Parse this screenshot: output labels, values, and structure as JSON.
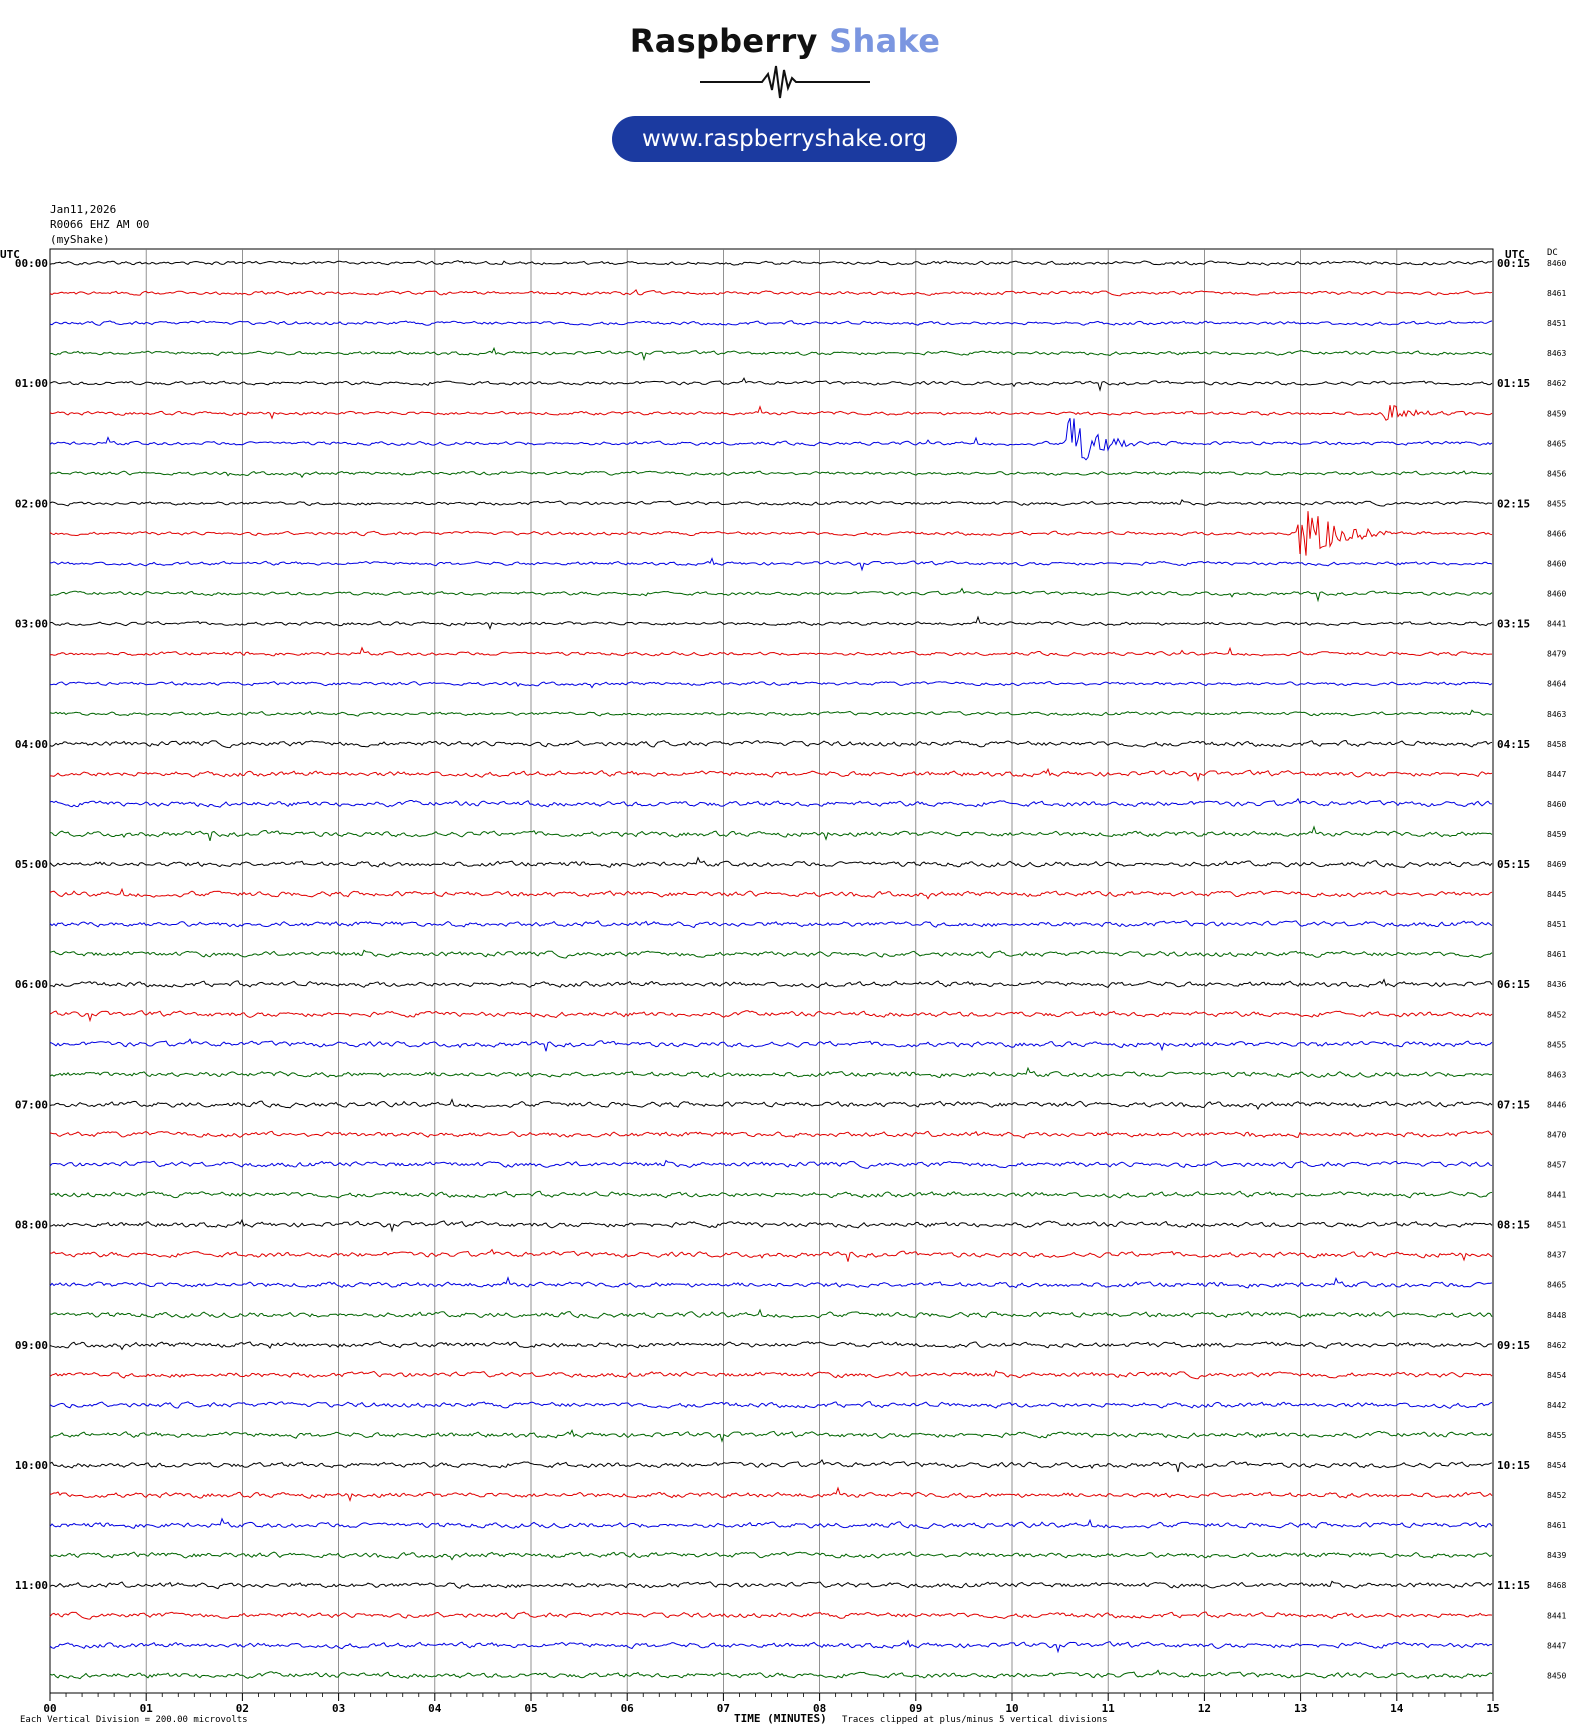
{
  "logo": {
    "word1": "Raspberry",
    "word2": "Shake",
    "url": "www.raspberryshake.org",
    "colors": {
      "word1": "#111111",
      "word2": "#7b96e0",
      "pill": "#1b3aa0"
    }
  },
  "header": {
    "date": "Jan11,2026",
    "station": "R0066 EHZ AM 00",
    "source": "(myShake)"
  },
  "left_axis_title": "UTC",
  "right_axis_title": "UTC",
  "dc_title": "DC",
  "bottom": {
    "scale_note": "Each Vertical Division =  200.00 microvolts",
    "axis_title": "TIME (MINUTES)",
    "clip_note": "Traces clipped at plus/minus 5 vertical divisions"
  },
  "chart_data": {
    "type": "line",
    "xlabel": "TIME (MINUTES)",
    "ylabel": "UTC",
    "x_ticks": [
      "00",
      "01",
      "02",
      "03",
      "04",
      "05",
      "06",
      "07",
      "08",
      "09",
      "10",
      "11",
      "12",
      "13",
      "14",
      "15"
    ],
    "xlim": [
      0,
      15
    ],
    "minutes_per_row": 15,
    "row_count": 48,
    "grid": true,
    "trace_colors": [
      "#000000",
      "#e00000",
      "#0000e0",
      "#006400"
    ],
    "left_labels": [
      "00:00",
      "01:00",
      "02:00",
      "03:00",
      "04:00",
      "05:00",
      "06:00",
      "07:00",
      "08:00",
      "09:00",
      "10:00",
      "11:00"
    ],
    "right_labels": [
      "00:15",
      "01:15",
      "02:15",
      "03:15",
      "04:15",
      "05:15",
      "06:15",
      "07:15",
      "08:15",
      "09:15",
      "10:15",
      "11:15"
    ],
    "dc_offsets": [
      "8460",
      "8461",
      "8451",
      "8463",
      "8462",
      "8459",
      "8465",
      "8456",
      "8455",
      "8466",
      "8460",
      "8460",
      "8441",
      "8479",
      "8464",
      "8463",
      "8458",
      "8447",
      "8460",
      "8459",
      "8469",
      "8445",
      "8451",
      "8461",
      "8436",
      "8452",
      "8455",
      "8463",
      "8446",
      "8470",
      "8457",
      "8441",
      "8451",
      "8437",
      "8465",
      "8448",
      "8462",
      "8454",
      "8442",
      "8455",
      "8454",
      "8452",
      "8461",
      "8439",
      "8468",
      "8441",
      "8447",
      "8450"
    ],
    "events": [
      {
        "row": 6,
        "minute": 10.6,
        "amplitude_divisions": 5.0,
        "duration_min": 0.7
      },
      {
        "row": 9,
        "minute": 13.0,
        "amplitude_divisions": 5.0,
        "duration_min": 0.9
      },
      {
        "row": 5,
        "minute": 13.9,
        "amplitude_divisions": 1.5,
        "duration_min": 0.7
      },
      {
        "row": 29,
        "minute": 12.4,
        "amplitude_divisions": 0.5,
        "duration_min": 0.3
      },
      {
        "row": 29,
        "minute": 13.0,
        "amplitude_divisions": 0.4,
        "duration_min": 0.2
      },
      {
        "row": 26,
        "minute": 13.2,
        "amplitude_divisions": 0.6,
        "duration_min": 0.1
      },
      {
        "row": 36,
        "minute": 2.3,
        "amplitude_divisions": 0.4,
        "duration_min": 0.1
      }
    ]
  }
}
